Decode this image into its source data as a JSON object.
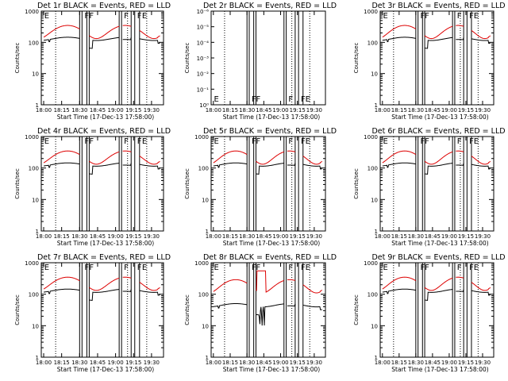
{
  "colors": {
    "events": "#000000",
    "lld": "#dd0000",
    "axis": "#000000",
    "background": "#ffffff"
  },
  "x_ticks": [
    "18:00",
    "18:15",
    "18:30",
    "18:45",
    "19:00",
    "19:15",
    "19:30"
  ],
  "x_axis_label": "Start Time (17-Dec-13 17:58:00)",
  "y_axis_label": "Counts/sec",
  "y_ticks_standard": [
    "1",
    "10",
    "100",
    "1000"
  ],
  "y_ticks_det2": [
    "10⁻¹",
    "10⁻²",
    "10⁻³",
    "10⁻⁴",
    "10⁻⁵",
    "10⁻⁶"
  ],
  "y_ticks_det2_bottom": [
    "10⁰"
  ],
  "markers": [
    {
      "x": "18:00.5",
      "label": "E"
    },
    {
      "x": "18:34",
      "label": "F"
    },
    {
      "x": "18:38",
      "label": "F"
    },
    {
      "x": "19:07",
      "label": "F"
    },
    {
      "x": "19:18",
      "label": "F"
    },
    {
      "x": "19:22",
      "label": "E"
    }
  ],
  "band_lines": [
    "18:30",
    "18:32",
    "18:36",
    "18:38",
    "19:03",
    "19:05",
    "19:13",
    "19:16",
    "19:20"
  ],
  "dotted_lines": [
    "18:10",
    "19:10",
    "19:26"
  ],
  "chart_data": [
    {
      "type": "line",
      "title": "Det 1r BLACK = Events, RED = LLD",
      "yscale": "log",
      "ylim": [
        1,
        1000
      ],
      "xlim": [
        "18:00",
        "19:40"
      ],
      "series": [
        {
          "name": "Events",
          "values": "~100-200 counts/sec"
        },
        {
          "name": "LLD",
          "values": "~150-450 counts/sec"
        }
      ]
    },
    {
      "type": "line",
      "title": "Det 2r BLACK = Events, RED = LLD",
      "yscale": "log",
      "ylim": [
        1,
        1e-06
      ],
      "xlim": [
        "18:00",
        "19:40"
      ],
      "series": []
    },
    {
      "type": "line",
      "title": "Det 3r BLACK = Events, RED = LLD",
      "yscale": "log",
      "ylim": [
        1,
        1000
      ],
      "xlim": [
        "18:00",
        "19:40"
      ],
      "series": [
        {
          "name": "Events",
          "values": "~70-150 counts/sec"
        },
        {
          "name": "LLD",
          "values": "~110-400 counts/sec"
        }
      ]
    },
    {
      "type": "line",
      "title": "Det 4r BLACK = Events, RED = LLD",
      "yscale": "log",
      "ylim": [
        1,
        1000
      ],
      "xlim": [
        "18:00",
        "19:40"
      ],
      "series": [
        {
          "name": "Events",
          "values": "~70-180 counts/sec"
        },
        {
          "name": "LLD",
          "values": "~150-450 counts/sec"
        }
      ]
    },
    {
      "type": "line",
      "title": "Det 5r BLACK = Events, RED = LLD",
      "yscale": "log",
      "ylim": [
        1,
        1000
      ],
      "xlim": [
        "18:00",
        "19:40"
      ],
      "series": [
        {
          "name": "Events",
          "values": "~70-150 counts/sec"
        },
        {
          "name": "LLD",
          "values": "~150-400 counts/sec"
        }
      ]
    },
    {
      "type": "line",
      "title": "Det 6r BLACK = Events, RED = LLD",
      "yscale": "log",
      "ylim": [
        1,
        1000
      ],
      "xlim": [
        "18:00",
        "19:40"
      ],
      "series": [
        {
          "name": "Events",
          "values": "~70-180 counts/sec"
        },
        {
          "name": "LLD",
          "values": "~150-450 counts/sec"
        }
      ]
    },
    {
      "type": "line",
      "title": "Det 7r BLACK = Events, RED = LLD",
      "yscale": "log",
      "ylim": [
        1,
        1000
      ],
      "xlim": [
        "18:00",
        "19:40"
      ],
      "series": [
        {
          "name": "Events",
          "values": "~70-180 counts/sec"
        },
        {
          "name": "LLD",
          "values": "~150-450 counts/sec"
        }
      ]
    },
    {
      "type": "line",
      "title": "Det 8r BLACK = Events, RED = LLD",
      "yscale": "log",
      "ylim": [
        1,
        1000
      ],
      "xlim": [
        "18:00",
        "19:40"
      ],
      "series": [
        {
          "name": "Events",
          "values": "~10-80 counts/sec"
        },
        {
          "name": "LLD",
          "values": "~120-700 counts/sec"
        }
      ]
    },
    {
      "type": "line",
      "title": "Det 9r BLACK = Events, RED = LLD",
      "yscale": "log",
      "ylim": [
        1,
        1000
      ],
      "xlim": [
        "18:00",
        "19:40"
      ],
      "series": [
        {
          "name": "Events",
          "values": "~70-180 counts/sec"
        },
        {
          "name": "LLD",
          "values": "~150-450 counts/sec"
        }
      ]
    }
  ]
}
